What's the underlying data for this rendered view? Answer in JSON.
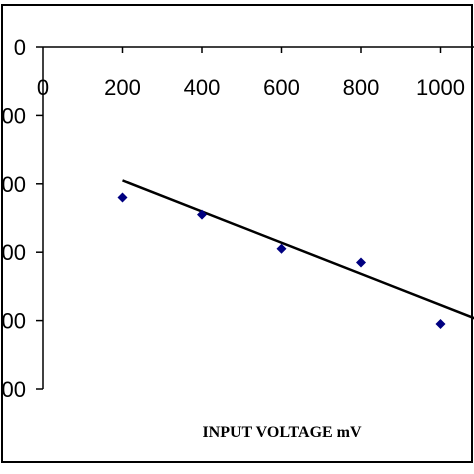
{
  "chart_data": {
    "type": "scatter",
    "xlabel": "INPUT VOLTAGE mV",
    "ylabel": "",
    "x_ticks": [
      "0",
      "200",
      "400",
      "600",
      "800",
      "1000"
    ],
    "y_ticks": [
      "0",
      "00",
      "00",
      "00",
      "00",
      "00"
    ],
    "xlim": [
      0,
      1100
    ],
    "ylim": [
      -5,
      0
    ],
    "series": [
      {
        "points": [
          {
            "x": 200,
            "y": -2.2
          },
          {
            "x": 400,
            "y": -2.45
          },
          {
            "x": 600,
            "y": -2.95
          },
          {
            "x": 800,
            "y": -3.15
          },
          {
            "x": 1000,
            "y": -4.05
          }
        ],
        "marker": "diamond",
        "color": "#000080"
      }
    ],
    "trendline": {
      "type": "linear",
      "from": {
        "x": 200,
        "y": -1.95
      },
      "to": {
        "x": 1100,
        "y": -4.0
      },
      "color": "#000000"
    },
    "grid": false,
    "legend": "none"
  }
}
